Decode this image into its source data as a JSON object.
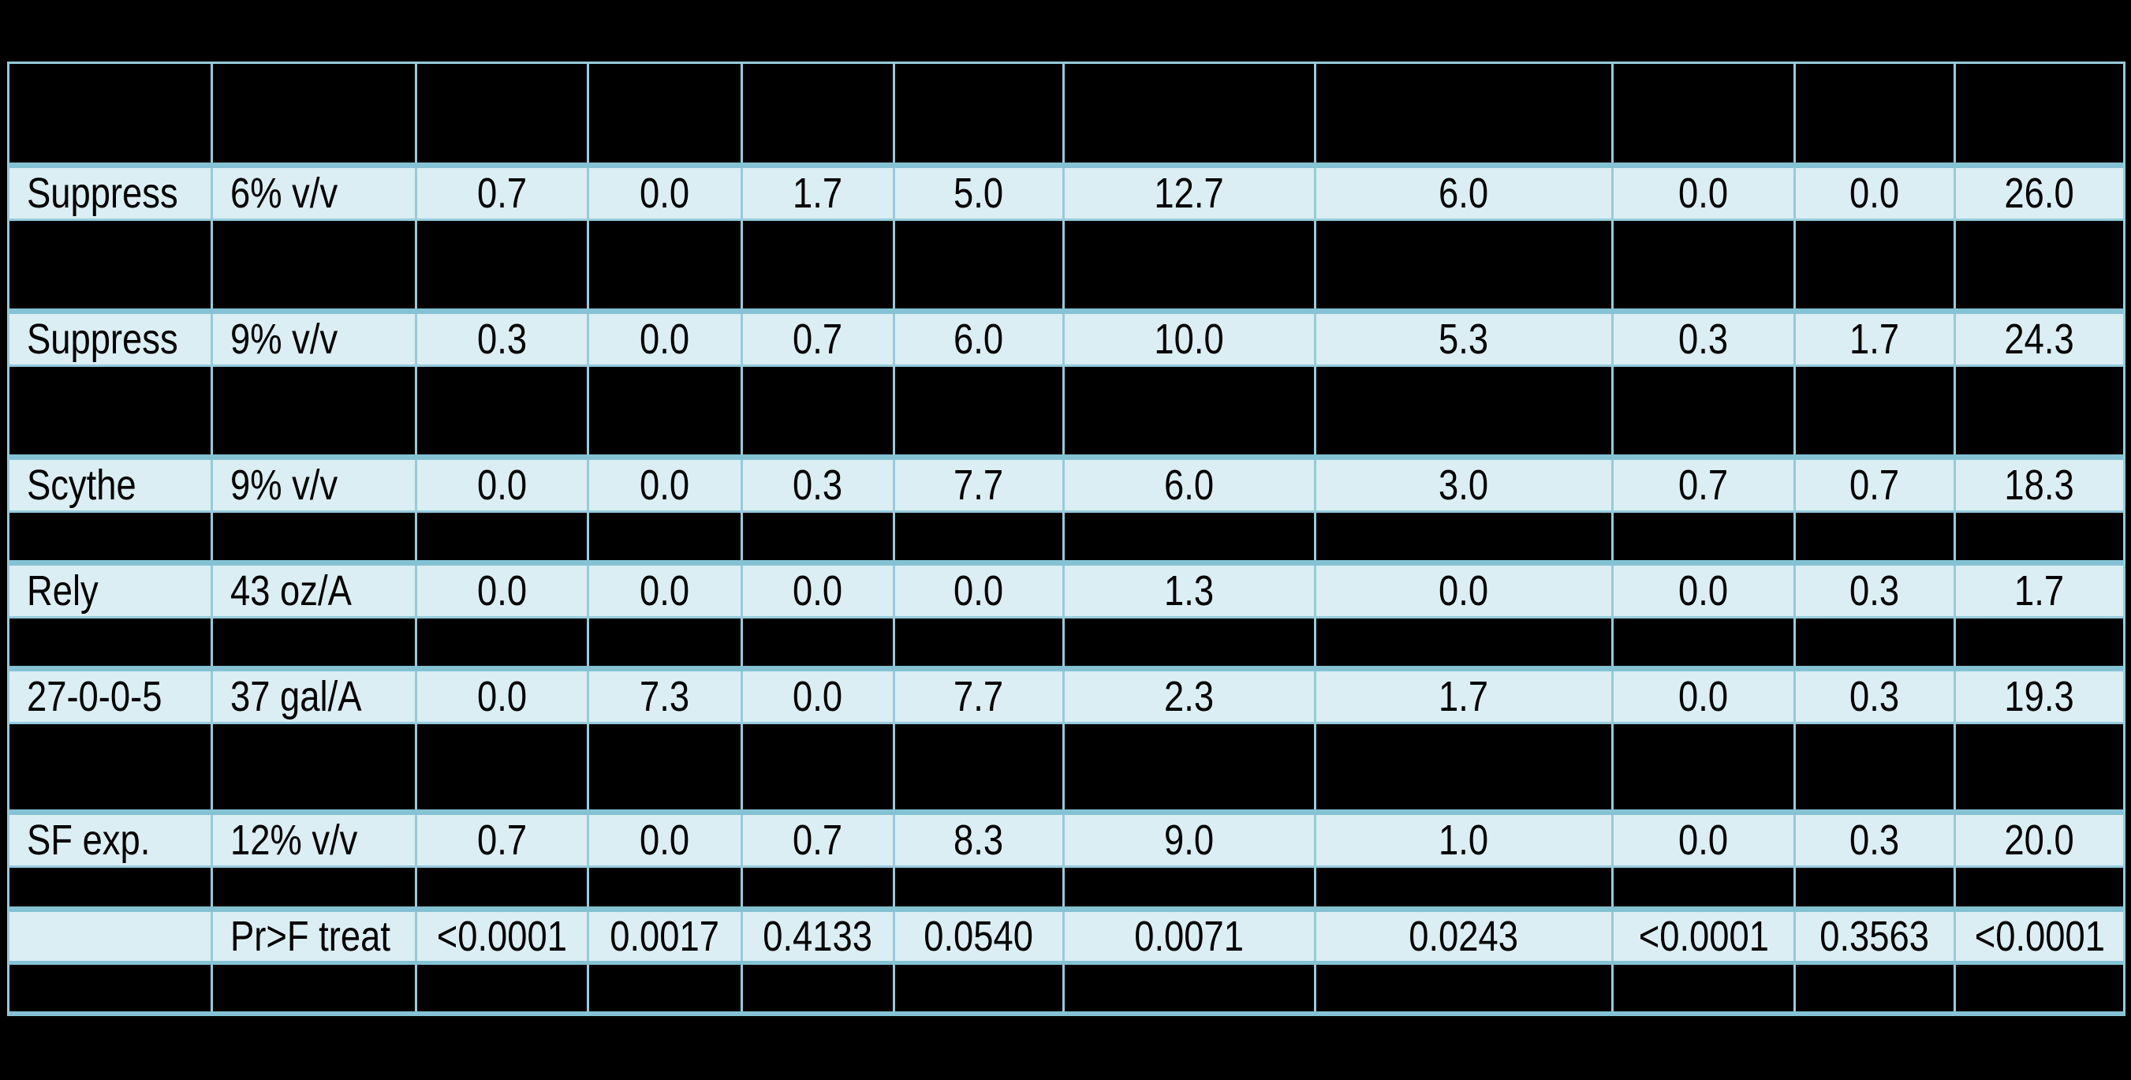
{
  "colors": {
    "background": "#000000",
    "row_fill": "#daeef3",
    "gridline": "#96cbdb",
    "gridline_thick": "#84c2d4",
    "text": "#000000"
  },
  "chart_data": {
    "type": "table",
    "header_row": [
      "",
      "",
      "",
      "",
      "",
      "",
      "",
      "",
      "",
      "",
      ""
    ],
    "rows": [
      [
        "Suppress",
        "6% v/v",
        "0.7",
        "0.0",
        "1.7",
        "5.0",
        "12.7",
        "6.0",
        "0.0",
        "0.0",
        "26.0"
      ],
      [
        "Suppress",
        "9% v/v",
        "0.3",
        "0.0",
        "0.7",
        "6.0",
        "10.0",
        "5.3",
        "0.3",
        "1.7",
        "24.3"
      ],
      [
        "Scythe",
        "9% v/v",
        "0.0",
        "0.0",
        "0.3",
        "7.7",
        "6.0",
        "3.0",
        "0.7",
        "0.7",
        "18.3"
      ],
      [
        "Rely",
        "43 oz/A",
        "0.0",
        "0.0",
        "0.0",
        "0.0",
        "1.3",
        "0.0",
        "0.0",
        "0.3",
        "1.7"
      ],
      [
        "27-0-0-5",
        "37 gal/A",
        "0.0",
        "7.3",
        "0.0",
        "7.7",
        "2.3",
        "1.7",
        "0.0",
        "0.3",
        "19.3"
      ],
      [
        "SF exp.",
        "12% v/v",
        "0.7",
        "0.0",
        "0.7",
        "8.3",
        "9.0",
        "1.0",
        "0.0",
        "0.3",
        "20.0"
      ],
      [
        "",
        "Pr>F treat",
        "<0.0001",
        "0.0017",
        "0.4133",
        "0.0540",
        "0.0071",
        "0.0243",
        "<0.0001",
        "0.3563",
        "<0.0001"
      ]
    ]
  }
}
